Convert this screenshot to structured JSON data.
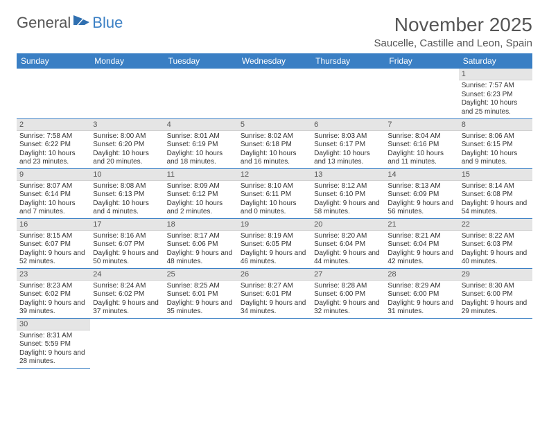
{
  "brand": {
    "general": "General",
    "blue": "Blue"
  },
  "title": "November 2025",
  "location": "Saucelle, Castille and Leon, Spain",
  "colors": {
    "header_bg": "#3a7fc4",
    "header_text": "#ffffff",
    "daynum_bg": "#e5e5e5",
    "border": "#3a7fc4",
    "text": "#333333",
    "title_text": "#555555"
  },
  "weekdays": [
    "Sunday",
    "Monday",
    "Tuesday",
    "Wednesday",
    "Thursday",
    "Friday",
    "Saturday"
  ],
  "weeks": [
    [
      null,
      null,
      null,
      null,
      null,
      null,
      {
        "n": "1",
        "sr": "Sunrise: 7:57 AM",
        "ss": "Sunset: 6:23 PM",
        "dl": "Daylight: 10 hours and 25 minutes."
      }
    ],
    [
      {
        "n": "2",
        "sr": "Sunrise: 7:58 AM",
        "ss": "Sunset: 6:22 PM",
        "dl": "Daylight: 10 hours and 23 minutes."
      },
      {
        "n": "3",
        "sr": "Sunrise: 8:00 AM",
        "ss": "Sunset: 6:20 PM",
        "dl": "Daylight: 10 hours and 20 minutes."
      },
      {
        "n": "4",
        "sr": "Sunrise: 8:01 AM",
        "ss": "Sunset: 6:19 PM",
        "dl": "Daylight: 10 hours and 18 minutes."
      },
      {
        "n": "5",
        "sr": "Sunrise: 8:02 AM",
        "ss": "Sunset: 6:18 PM",
        "dl": "Daylight: 10 hours and 16 minutes."
      },
      {
        "n": "6",
        "sr": "Sunrise: 8:03 AM",
        "ss": "Sunset: 6:17 PM",
        "dl": "Daylight: 10 hours and 13 minutes."
      },
      {
        "n": "7",
        "sr": "Sunrise: 8:04 AM",
        "ss": "Sunset: 6:16 PM",
        "dl": "Daylight: 10 hours and 11 minutes."
      },
      {
        "n": "8",
        "sr": "Sunrise: 8:06 AM",
        "ss": "Sunset: 6:15 PM",
        "dl": "Daylight: 10 hours and 9 minutes."
      }
    ],
    [
      {
        "n": "9",
        "sr": "Sunrise: 8:07 AM",
        "ss": "Sunset: 6:14 PM",
        "dl": "Daylight: 10 hours and 7 minutes."
      },
      {
        "n": "10",
        "sr": "Sunrise: 8:08 AM",
        "ss": "Sunset: 6:13 PM",
        "dl": "Daylight: 10 hours and 4 minutes."
      },
      {
        "n": "11",
        "sr": "Sunrise: 8:09 AM",
        "ss": "Sunset: 6:12 PM",
        "dl": "Daylight: 10 hours and 2 minutes."
      },
      {
        "n": "12",
        "sr": "Sunrise: 8:10 AM",
        "ss": "Sunset: 6:11 PM",
        "dl": "Daylight: 10 hours and 0 minutes."
      },
      {
        "n": "13",
        "sr": "Sunrise: 8:12 AM",
        "ss": "Sunset: 6:10 PM",
        "dl": "Daylight: 9 hours and 58 minutes."
      },
      {
        "n": "14",
        "sr": "Sunrise: 8:13 AM",
        "ss": "Sunset: 6:09 PM",
        "dl": "Daylight: 9 hours and 56 minutes."
      },
      {
        "n": "15",
        "sr": "Sunrise: 8:14 AM",
        "ss": "Sunset: 6:08 PM",
        "dl": "Daylight: 9 hours and 54 minutes."
      }
    ],
    [
      {
        "n": "16",
        "sr": "Sunrise: 8:15 AM",
        "ss": "Sunset: 6:07 PM",
        "dl": "Daylight: 9 hours and 52 minutes."
      },
      {
        "n": "17",
        "sr": "Sunrise: 8:16 AM",
        "ss": "Sunset: 6:07 PM",
        "dl": "Daylight: 9 hours and 50 minutes."
      },
      {
        "n": "18",
        "sr": "Sunrise: 8:17 AM",
        "ss": "Sunset: 6:06 PM",
        "dl": "Daylight: 9 hours and 48 minutes."
      },
      {
        "n": "19",
        "sr": "Sunrise: 8:19 AM",
        "ss": "Sunset: 6:05 PM",
        "dl": "Daylight: 9 hours and 46 minutes."
      },
      {
        "n": "20",
        "sr": "Sunrise: 8:20 AM",
        "ss": "Sunset: 6:04 PM",
        "dl": "Daylight: 9 hours and 44 minutes."
      },
      {
        "n": "21",
        "sr": "Sunrise: 8:21 AM",
        "ss": "Sunset: 6:04 PM",
        "dl": "Daylight: 9 hours and 42 minutes."
      },
      {
        "n": "22",
        "sr": "Sunrise: 8:22 AM",
        "ss": "Sunset: 6:03 PM",
        "dl": "Daylight: 9 hours and 40 minutes."
      }
    ],
    [
      {
        "n": "23",
        "sr": "Sunrise: 8:23 AM",
        "ss": "Sunset: 6:02 PM",
        "dl": "Daylight: 9 hours and 39 minutes."
      },
      {
        "n": "24",
        "sr": "Sunrise: 8:24 AM",
        "ss": "Sunset: 6:02 PM",
        "dl": "Daylight: 9 hours and 37 minutes."
      },
      {
        "n": "25",
        "sr": "Sunrise: 8:25 AM",
        "ss": "Sunset: 6:01 PM",
        "dl": "Daylight: 9 hours and 35 minutes."
      },
      {
        "n": "26",
        "sr": "Sunrise: 8:27 AM",
        "ss": "Sunset: 6:01 PM",
        "dl": "Daylight: 9 hours and 34 minutes."
      },
      {
        "n": "27",
        "sr": "Sunrise: 8:28 AM",
        "ss": "Sunset: 6:00 PM",
        "dl": "Daylight: 9 hours and 32 minutes."
      },
      {
        "n": "28",
        "sr": "Sunrise: 8:29 AM",
        "ss": "Sunset: 6:00 PM",
        "dl": "Daylight: 9 hours and 31 minutes."
      },
      {
        "n": "29",
        "sr": "Sunrise: 8:30 AM",
        "ss": "Sunset: 6:00 PM",
        "dl": "Daylight: 9 hours and 29 minutes."
      }
    ],
    [
      {
        "n": "30",
        "sr": "Sunrise: 8:31 AM",
        "ss": "Sunset: 5:59 PM",
        "dl": "Daylight: 9 hours and 28 minutes."
      },
      null,
      null,
      null,
      null,
      null,
      null
    ]
  ]
}
